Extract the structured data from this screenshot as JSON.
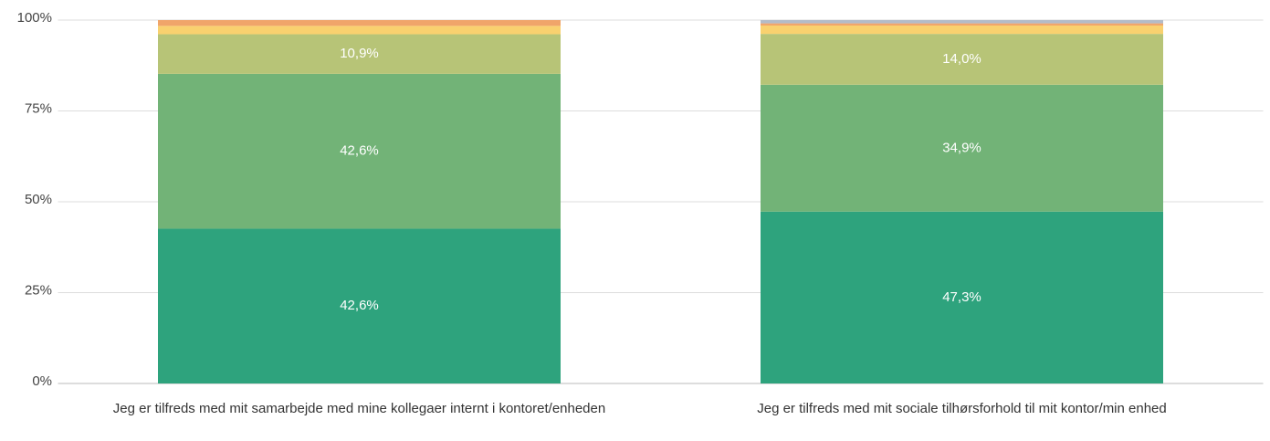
{
  "chart_data": {
    "type": "stacked_bar",
    "categories": [
      "Jeg er tilfreds med mit samarbejde med mine kollegaer internt i kontoret/enheden",
      "Jeg er tilfreds med mit sociale tilhørsforhold til mit kontor/min enhed"
    ],
    "series": [
      {
        "color": "#2ea37d",
        "values": [
          42.6,
          47.3
        ],
        "value_labels": [
          "42,6%",
          "47,3%"
        ]
      },
      {
        "color": "#72b377",
        "values": [
          42.6,
          34.9
        ],
        "value_labels": [
          "42,6%",
          "34,9%"
        ]
      },
      {
        "color": "#b7c477",
        "values": [
          10.9,
          14.0
        ],
        "value_labels": [
          "10,9%",
          "14,0%"
        ]
      },
      {
        "color": "#f9d16f",
        "values": [
          2.3,
          2.3
        ]
      },
      {
        "color": "#f0a56a",
        "values": [
          1.6,
          0.6
        ]
      },
      {
        "color": "#b3bcc8",
        "values": [
          0,
          0.9
        ]
      }
    ],
    "ylim": [
      0,
      100
    ],
    "yticks": [
      {
        "value": 0,
        "label": "0%"
      },
      {
        "value": 25,
        "label": "25%"
      },
      {
        "value": 50,
        "label": "50%"
      },
      {
        "value": 75,
        "label": "75%"
      },
      {
        "value": 100,
        "label": "100%"
      }
    ],
    "grid": true
  }
}
